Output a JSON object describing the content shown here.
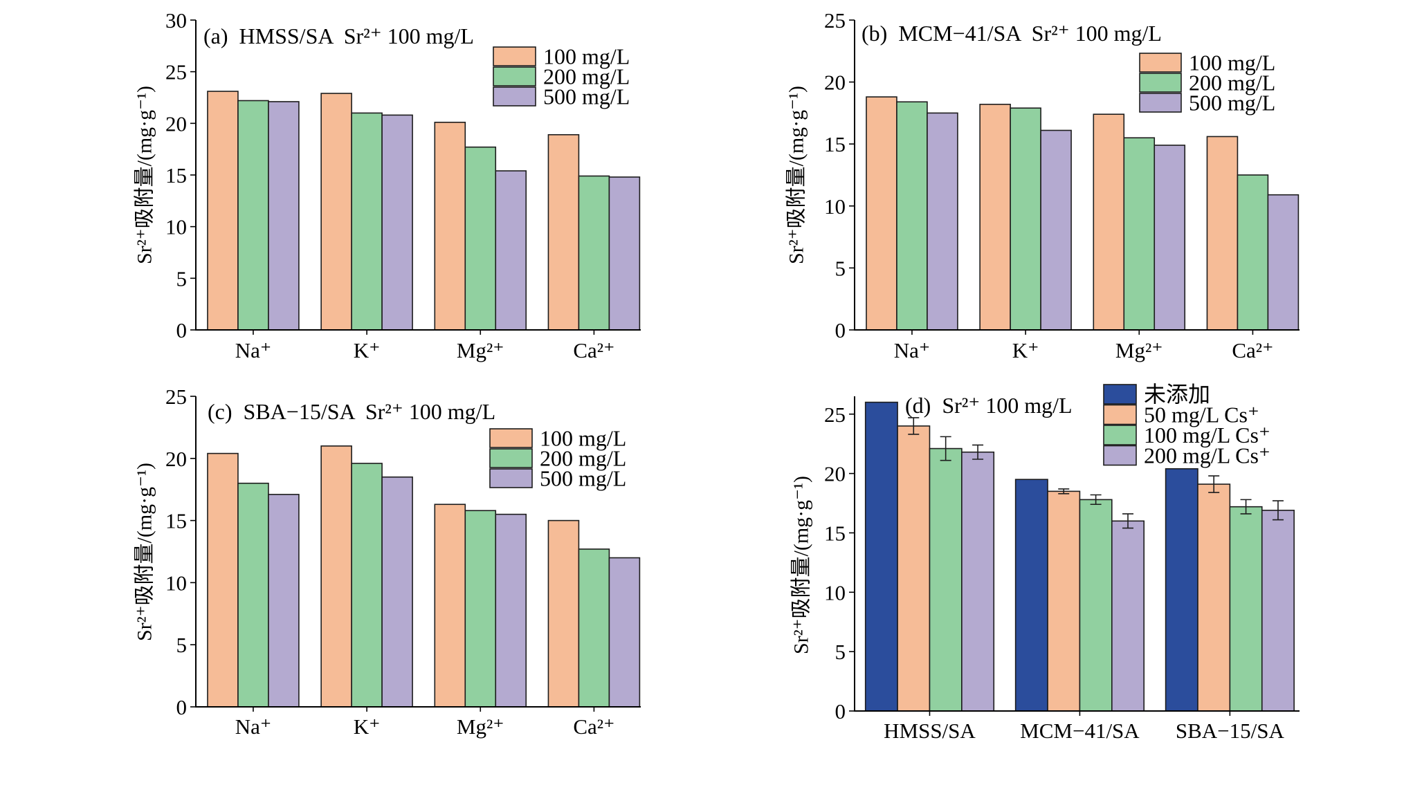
{
  "chart_data": [
    {
      "type": "bar",
      "title": "(a)  HMSS/SA  Sr²⁺ 100 mg/L",
      "ylabel": "Sr²⁺吸附量/(mg·g⁻¹)",
      "categories": [
        "Na⁺",
        "K⁺",
        "Mg²⁺",
        "Ca²⁺"
      ],
      "ylim": [
        0,
        30
      ],
      "yticks": [
        0,
        5,
        10,
        15,
        20,
        25,
        30
      ],
      "grid": false,
      "legend_position": "top-right",
      "series": [
        {
          "name": "100 mg/L",
          "color": "#F6BC97",
          "values": [
            23.1,
            22.9,
            20.1,
            18.9
          ]
        },
        {
          "name": "200 mg/L",
          "color": "#91D0A0",
          "values": [
            22.2,
            21.0,
            17.7,
            14.9
          ]
        },
        {
          "name": "500 mg/L",
          "color": "#B4AAD0",
          "values": [
            22.1,
            20.8,
            15.4,
            14.8
          ]
        }
      ]
    },
    {
      "type": "bar",
      "title": "(b)  MCM−41/SA  Sr²⁺ 100 mg/L",
      "ylabel": "Sr²⁺吸附量/(mg·g⁻¹)",
      "categories": [
        "Na⁺",
        "K⁺",
        "Mg²⁺",
        "Ca²⁺"
      ],
      "ylim": [
        0,
        25
      ],
      "yticks": [
        0,
        5,
        10,
        15,
        20,
        25
      ],
      "grid": false,
      "legend_position": "top-right",
      "series": [
        {
          "name": "100 mg/L",
          "color": "#F6BC97",
          "values": [
            18.8,
            18.2,
            17.4,
            15.6
          ]
        },
        {
          "name": "200 mg/L",
          "color": "#91D0A0",
          "values": [
            18.4,
            17.9,
            15.5,
            12.5
          ]
        },
        {
          "name": "500 mg/L",
          "color": "#B4AAD0",
          "values": [
            17.5,
            16.1,
            14.9,
            10.9
          ]
        }
      ]
    },
    {
      "type": "bar",
      "title": "(c)  SBA−15/SA  Sr²⁺ 100 mg/L",
      "ylabel": "Sr²⁺吸附量/(mg·g⁻¹)",
      "categories": [
        "Na⁺",
        "K⁺",
        "Mg²⁺",
        "Ca²⁺"
      ],
      "ylim": [
        0,
        25
      ],
      "yticks": [
        0,
        5,
        10,
        15,
        20,
        25
      ],
      "grid": false,
      "legend_position": "top-right",
      "series": [
        {
          "name": "100 mg/L",
          "color": "#F6BC97",
          "values": [
            20.4,
            21.0,
            16.3,
            15.0
          ]
        },
        {
          "name": "200 mg/L",
          "color": "#91D0A0",
          "values": [
            18.0,
            19.6,
            15.8,
            12.7
          ]
        },
        {
          "name": "500 mg/L",
          "color": "#B4AAD0",
          "values": [
            17.1,
            18.5,
            15.5,
            12.0
          ]
        }
      ]
    },
    {
      "type": "bar",
      "title": "(d)  Sr²⁺ 100 mg/L",
      "ylabel": "Sr²⁺吸附量/(mg·g⁻¹)",
      "categories": [
        "HMSS/SA",
        "MCM−41/SA",
        "SBA−15/SA"
      ],
      "ylim": [
        0,
        26.5
      ],
      "yticks": [
        0,
        5,
        10,
        15,
        20,
        25
      ],
      "grid": false,
      "legend_position": "top-right",
      "series": [
        {
          "name": "未添加",
          "color": "#2B4D9C",
          "values": [
            26.0,
            19.5,
            20.4
          ]
        },
        {
          "name": "50 mg/L Cs⁺",
          "color": "#F6BC97",
          "values": [
            24.0,
            18.5,
            19.1
          ],
          "errors": [
            0.7,
            0.2,
            0.7
          ]
        },
        {
          "name": "100 mg/L Cs⁺",
          "color": "#91D0A0",
          "values": [
            22.1,
            17.8,
            17.2
          ],
          "errors": [
            1.0,
            0.4,
            0.6
          ]
        },
        {
          "name": "200 mg/L Cs⁺",
          "color": "#B4AAD0",
          "values": [
            21.8,
            16.0,
            16.9
          ],
          "errors": [
            0.6,
            0.6,
            0.8
          ]
        }
      ]
    }
  ]
}
